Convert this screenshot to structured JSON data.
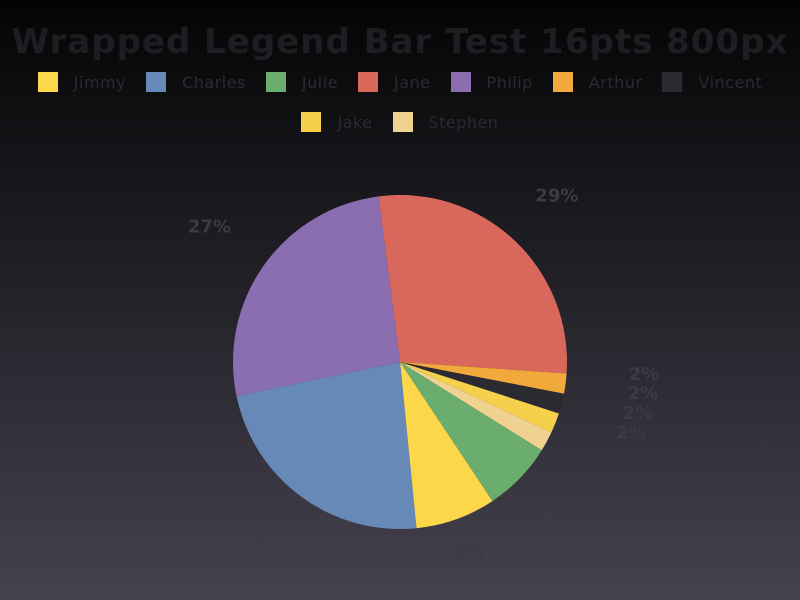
{
  "chart_data": {
    "type": "pie",
    "title": "Wrapped Legend Bar Test 16pts 800px",
    "legend_position": "top",
    "slices": [
      {
        "name": "Jane",
        "value": 29,
        "label": "29%",
        "color": "#d9685c"
      },
      {
        "name": "Arthur",
        "value": 2,
        "label": "2%",
        "color": "#f2a93b"
      },
      {
        "name": "Vincent",
        "value": 2,
        "label": "2%",
        "color": "#2b2a30"
      },
      {
        "name": "Jake",
        "value": 2,
        "label": "2%",
        "color": "#f5d04a"
      },
      {
        "name": "Stephen",
        "value": 2,
        "label": "2%",
        "color": "#efd28f"
      },
      {
        "name": "Julie",
        "value": 7,
        "label": "7%",
        "color": "#6bad6c"
      },
      {
        "name": "Jimmy",
        "value": 8,
        "label": "8%",
        "color": "#fcd74a"
      },
      {
        "name": "Charles",
        "value": 24,
        "label": "24%",
        "color": "#6789b8"
      },
      {
        "name": "Philip",
        "value": 27,
        "label": "27%",
        "color": "#8b6eb1"
      }
    ],
    "legend": [
      {
        "name": "Jimmy",
        "color": "#fcd74a"
      },
      {
        "name": "Charles",
        "color": "#6789b8"
      },
      {
        "name": "Julie",
        "color": "#6bad6c"
      },
      {
        "name": "Jane",
        "color": "#d9685c"
      },
      {
        "name": "Philip",
        "color": "#8b6eb1"
      },
      {
        "name": "Arthur",
        "color": "#f2a93b"
      },
      {
        "name": "Vincent",
        "color": "#2b2a30"
      },
      {
        "name": "Jake",
        "color": "#f5d04a"
      },
      {
        "name": "Stephen",
        "color": "#efd28f"
      }
    ]
  }
}
